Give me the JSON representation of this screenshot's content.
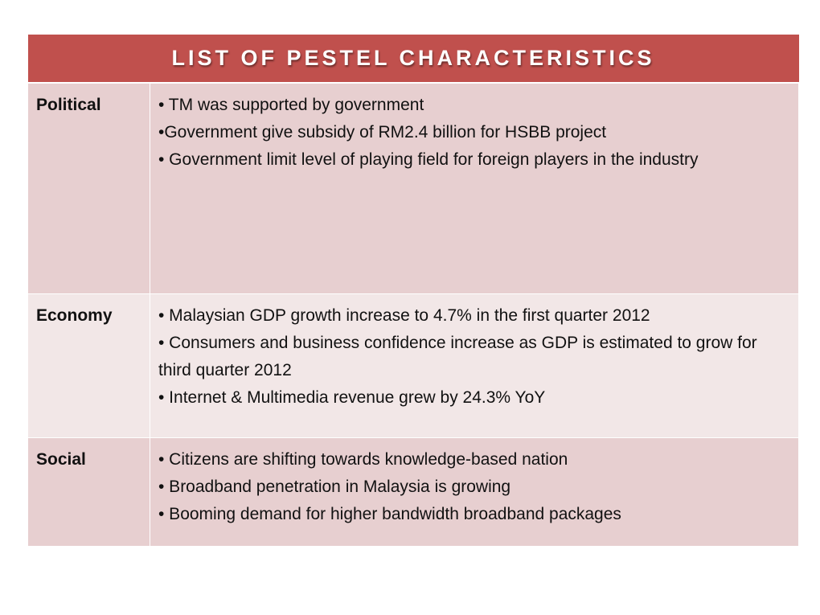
{
  "header": {
    "title": "LIST OF PESTEL CHARACTERISTICS"
  },
  "table": {
    "rows": [
      {
        "label": "Political",
        "items": [
          "• TM was supported by government",
          "•Government give subsidy of RM2.4 billion for HSBB project",
          "• Government limit level of playing field for foreign players in the industry"
        ]
      },
      {
        "label": "Economy",
        "items": [
          "• Malaysian GDP growth increase to 4.7% in the first quarter 2012",
          "• Consumers and business confidence increase as GDP is estimated to grow for third quarter 2012",
          "• Internet & Multimedia revenue grew by 24.3% YoY"
        ]
      },
      {
        "label": "Social",
        "items": [
          "• Citizens are shifting towards knowledge-based nation",
          "• Broadband penetration in Malaysia is growing",
          "• Booming demand for higher bandwidth broadband packages"
        ]
      }
    ]
  }
}
